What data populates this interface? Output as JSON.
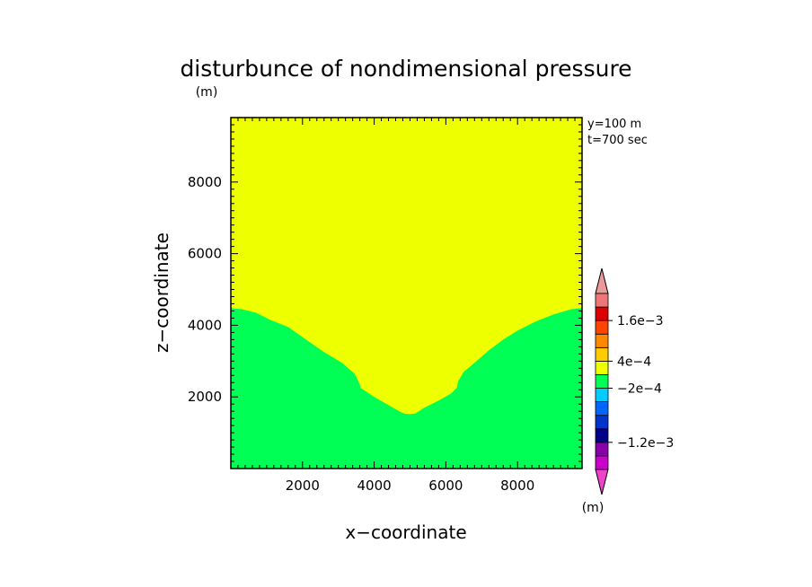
{
  "chart_data": {
    "type": "heatmap",
    "title": "disturbunce of nondimensional pressure",
    "unit_label": "(m)",
    "xlabel": "x−coordinate",
    "ylabel": "z−coordinate",
    "xlim": [
      0,
      9800
    ],
    "ylim": [
      0,
      9800
    ],
    "x_ticks": [
      2000,
      4000,
      6000,
      8000
    ],
    "y_ticks": [
      2000,
      4000,
      6000,
      8000
    ],
    "annotations": [
      "y=100 m",
      "t=700 sec"
    ],
    "background_region": {
      "color": "#eeff00",
      "range": "4e-4 to 0.0"
    },
    "contour_region": {
      "color": "#00ff55",
      "range": "-2e-4 to 0.0",
      "boundary": [
        [
          0,
          4480
        ],
        [
          300,
          4450
        ],
        [
          700,
          4350
        ],
        [
          1100,
          4150
        ],
        [
          1600,
          3950
        ],
        [
          2100,
          3600
        ],
        [
          2600,
          3250
        ],
        [
          3100,
          2950
        ],
        [
          3450,
          2650
        ],
        [
          3600,
          2350
        ],
        [
          3620,
          2250
        ],
        [
          3700,
          2200
        ],
        [
          4000,
          2000
        ],
        [
          4350,
          1800
        ],
        [
          4700,
          1600
        ],
        [
          4850,
          1530
        ],
        [
          5000,
          1520
        ],
        [
          5150,
          1540
        ],
        [
          5400,
          1700
        ],
        [
          5800,
          1900
        ],
        [
          6150,
          2100
        ],
        [
          6300,
          2250
        ],
        [
          6350,
          2450
        ],
        [
          6500,
          2700
        ],
        [
          6800,
          2950
        ],
        [
          7200,
          3300
        ],
        [
          7600,
          3600
        ],
        [
          8000,
          3850
        ],
        [
          8500,
          4100
        ],
        [
          9000,
          4300
        ],
        [
          9500,
          4450
        ],
        [
          9800,
          4480
        ]
      ]
    },
    "colorbar": {
      "levels": [
        {
          "color": "#cc00cc"
        },
        {
          "color": "#8800aa"
        },
        {
          "color": "#000088"
        },
        {
          "color": "#0033cc"
        },
        {
          "color": "#0066ff"
        },
        {
          "color": "#00ccff"
        },
        {
          "color": "#00ff55"
        },
        {
          "color": "#eeff00"
        },
        {
          "color": "#ffcc00"
        },
        {
          "color": "#ff8800"
        },
        {
          "color": "#ff4400"
        },
        {
          "color": "#dd0000"
        },
        {
          "color": "#ee7777"
        }
      ],
      "under_color": "#ee44cc",
      "over_color": "#ee9999",
      "labels": [
        {
          "text": "1.6e−3",
          "after_level": 11
        },
        {
          "text": "4e−4",
          "after_level": 8
        },
        {
          "text": "−2e−4",
          "after_level": 6
        },
        {
          "text": "−1.2e−3",
          "after_level": 2
        }
      ],
      "unit_label": "(m)"
    }
  }
}
